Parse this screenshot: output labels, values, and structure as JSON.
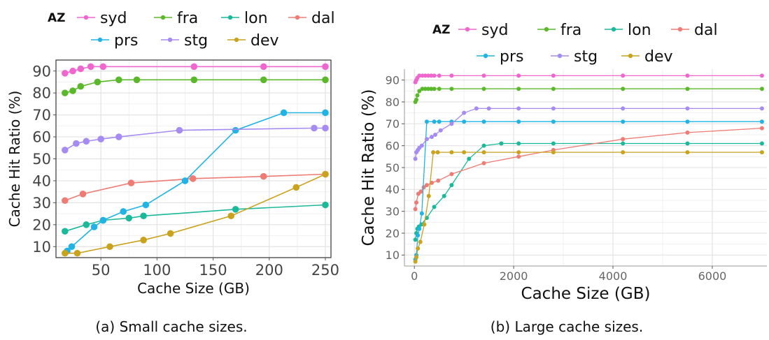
{
  "figure": {
    "captions": [
      "(a)  Small cache sizes.",
      "(b)  Large cache sizes."
    ]
  },
  "colors": {
    "syd": "#F066CF",
    "fra": "#5BB82A",
    "lon": "#1BB89A",
    "dal": "#EE7B74",
    "prs": "#21B3E4",
    "stg": "#A58BF2",
    "dev": "#C9A21E",
    "grid": "#e3e3e3",
    "axis": "#444444",
    "tick_text": "#555555"
  },
  "chart_data": [
    {
      "type": "line",
      "xlabel": "Cache Size (GB)",
      "ylabel": "Cache Hit Ratio (%)",
      "xlim": [
        10,
        255
      ],
      "ylim": [
        5,
        95
      ],
      "xticks": [
        50,
        100,
        150,
        200,
        250
      ],
      "xtick_labels": [
        "50",
        "100",
        "150",
        "200",
        "250"
      ],
      "yticks": [
        10,
        20,
        30,
        40,
        50,
        60,
        70,
        80,
        90
      ],
      "grid": true,
      "legend": {
        "title": "AZ",
        "placement": "top",
        "rows": [
          [
            "syd",
            "fra",
            "lon",
            "dal"
          ],
          [
            "prs",
            "stg",
            "dev"
          ]
        ]
      },
      "series": [
        {
          "name": "syd",
          "x": [
            18,
            25,
            32,
            41,
            52,
            133,
            195,
            250
          ],
          "y": [
            89,
            90,
            91,
            92,
            92,
            92,
            92,
            92
          ]
        },
        {
          "name": "fra",
          "x": [
            18,
            25,
            32,
            47,
            66,
            82,
            133,
            195,
            250
          ],
          "y": [
            80,
            81,
            83,
            85,
            86,
            86,
            86,
            86,
            86
          ]
        },
        {
          "name": "lon",
          "x": [
            18,
            37,
            52,
            75,
            88,
            170,
            250
          ],
          "y": [
            17,
            20,
            22,
            23,
            24,
            27,
            29
          ]
        },
        {
          "name": "dal",
          "x": [
            18,
            34,
            77,
            132,
            195,
            250
          ],
          "y": [
            31,
            34,
            39,
            41,
            42,
            43
          ]
        },
        {
          "name": "prs",
          "x": [
            20,
            24,
            44,
            52,
            70,
            90,
            125,
            170,
            213,
            250
          ],
          "y": [
            8,
            10,
            19,
            22,
            26,
            29,
            40,
            63,
            71,
            71
          ]
        },
        {
          "name": "stg",
          "x": [
            18,
            28,
            37,
            50,
            66,
            120,
            240,
            250
          ],
          "y": [
            54,
            57,
            58,
            59,
            60,
            63,
            64,
            64
          ]
        },
        {
          "name": "dev",
          "x": [
            18,
            29,
            58,
            88,
            112,
            166,
            224,
            250
          ],
          "y": [
            7,
            7,
            10,
            13,
            16,
            24,
            37,
            43
          ]
        }
      ]
    },
    {
      "type": "line",
      "xlabel": "Cache Size (GB)",
      "ylabel": "Cache Hit Ratio (%)",
      "xlim": [
        -200,
        7100
      ],
      "ylim": [
        5,
        95
      ],
      "xticks": [
        0,
        2000,
        4000,
        6000
      ],
      "xtick_labels": [
        "0",
        "2000",
        "4000",
        "6000"
      ],
      "yticks": [
        10,
        20,
        30,
        40,
        50,
        60,
        70,
        80,
        90
      ],
      "grid": true,
      "legend": {
        "title": "AZ",
        "placement": "top",
        "rows": [
          [
            "syd",
            "fra",
            "lon",
            "dal"
          ],
          [
            "prs",
            "stg",
            "dev"
          ]
        ]
      },
      "series": [
        {
          "name": "syd",
          "x": [
            20,
            40,
            60,
            100,
            160,
            220,
            280,
            340,
            400,
            500,
            750,
            1400,
            2100,
            2800,
            4200,
            5500,
            7000
          ],
          "y": [
            89,
            90,
            91,
            92,
            92,
            92,
            92,
            92,
            92,
            92,
            92,
            92,
            92,
            92,
            92,
            92,
            92
          ]
        },
        {
          "name": "fra",
          "x": [
            20,
            40,
            60,
            100,
            160,
            220,
            280,
            340,
            400,
            500,
            750,
            1400,
            2100,
            2800,
            4200,
            5500,
            7000
          ],
          "y": [
            80,
            81,
            83,
            85,
            86,
            86,
            86,
            86,
            86,
            86,
            86,
            86,
            86,
            86,
            86,
            86,
            86
          ]
        },
        {
          "name": "lon",
          "x": [
            20,
            40,
            60,
            90,
            140,
            250,
            400,
            600,
            750,
            1100,
            1400,
            1750,
            2100,
            2800,
            4200,
            5500,
            7000
          ],
          "y": [
            17,
            20,
            22,
            23,
            24,
            27,
            32,
            37,
            42,
            54,
            60,
            61,
            61,
            61,
            61,
            61,
            61
          ]
        },
        {
          "name": "dal",
          "x": [
            20,
            40,
            80,
            130,
            190,
            250,
            350,
            480,
            750,
            1400,
            2100,
            2800,
            4200,
            5500,
            7000
          ],
          "y": [
            31,
            34,
            38,
            39,
            41,
            42,
            43,
            44,
            47,
            52,
            55,
            58,
            63,
            66,
            68
          ]
        },
        {
          "name": "prs",
          "x": [
            20,
            40,
            70,
            100,
            150,
            250,
            400,
            500,
            750,
            1000,
            1400,
            2100,
            2800,
            4200,
            5500,
            7000
          ],
          "y": [
            8,
            10,
            19,
            22,
            29,
            71,
            71,
            71,
            71,
            71,
            71,
            71,
            71,
            71,
            71,
            71
          ]
        },
        {
          "name": "stg",
          "x": [
            20,
            40,
            70,
            100,
            150,
            250,
            350,
            420,
            530,
            750,
            1000,
            1250,
            1500,
            2100,
            2800,
            4200,
            5500,
            7000
          ],
          "y": [
            54,
            57,
            58,
            59,
            60,
            63,
            64,
            65,
            67,
            70,
            75,
            77,
            77,
            77,
            77,
            77,
            77,
            77
          ]
        },
        {
          "name": "dev",
          "x": [
            20,
            40,
            70,
            120,
            200,
            290,
            380,
            470,
            750,
            1000,
            1400,
            2100,
            2800,
            4200,
            5500,
            7000
          ],
          "y": [
            7,
            9,
            13,
            16,
            24,
            37,
            57,
            57,
            57,
            57,
            57,
            57,
            57,
            57,
            57,
            57
          ]
        }
      ]
    }
  ]
}
